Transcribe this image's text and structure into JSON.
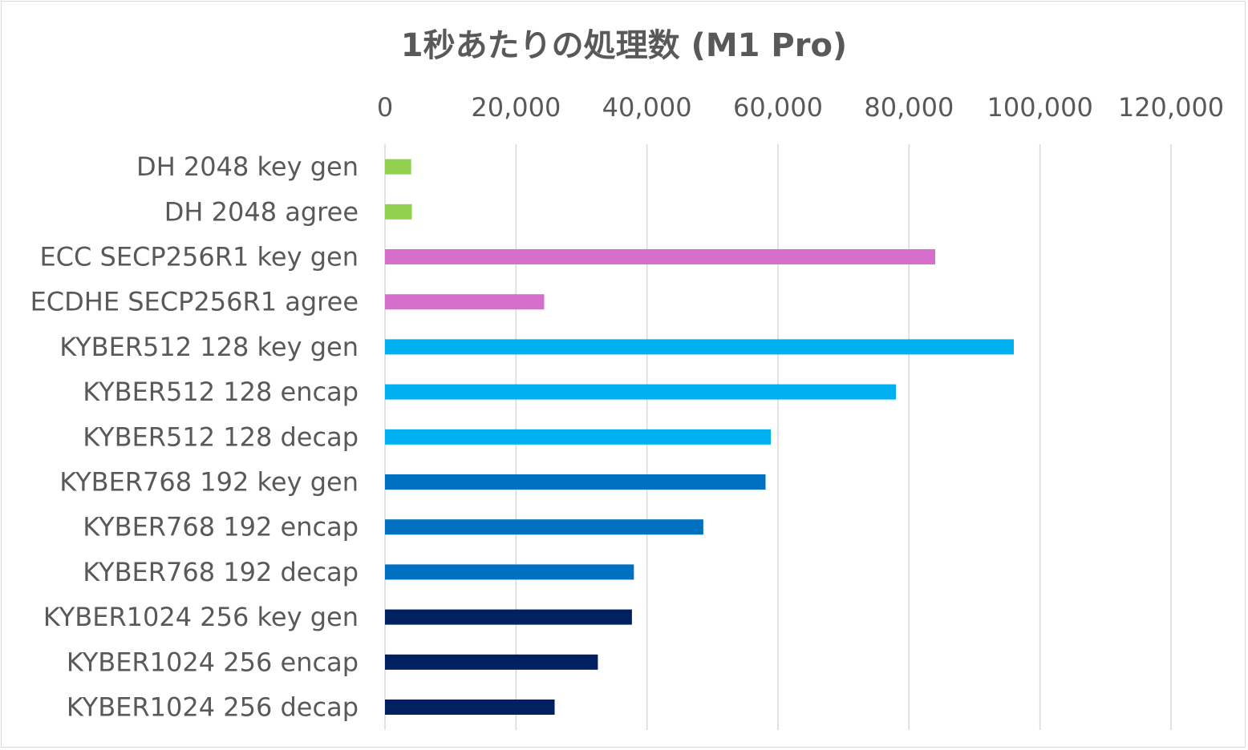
{
  "chart_data": {
    "type": "bar",
    "orientation": "horizontal",
    "title": "1秒あたりの処理数 (M1 Pro)",
    "xlabel": "",
    "ylabel": "",
    "xlim": [
      0,
      120000
    ],
    "x_ticks": [
      0,
      20000,
      40000,
      60000,
      80000,
      100000,
      120000
    ],
    "x_tick_labels": [
      "0",
      "20,000",
      "40,000",
      "60,000",
      "80,000",
      "100,000",
      "120,000"
    ],
    "x_axis_position": "top",
    "grid": "vertical",
    "legend": "none",
    "categories": [
      "DH 2048 key gen",
      "DH 2048 agree",
      "ECC SECP256R1 key gen",
      "ECDHE SECP256R1 agree",
      "KYBER512 128 key gen",
      "KYBER512 128 encap",
      "KYBER512 128 decap",
      "KYBER768 192 key gen",
      "KYBER768 192 encap",
      "KYBER768 192 decap",
      "KYBER1024 256 key gen",
      "KYBER1024 256 encap",
      "KYBER1024 256 decap"
    ],
    "values": [
      4000,
      4100,
      84000,
      24300,
      96000,
      78000,
      58900,
      58100,
      48600,
      38000,
      37700,
      32500,
      25900
    ],
    "bar_colors": [
      "#92d050",
      "#92d050",
      "#d66fcb",
      "#d66fcb",
      "#00b0f0",
      "#00b0f0",
      "#00b0f0",
      "#0070c0",
      "#0070c0",
      "#0070c0",
      "#002060",
      "#002060",
      "#002060"
    ]
  }
}
